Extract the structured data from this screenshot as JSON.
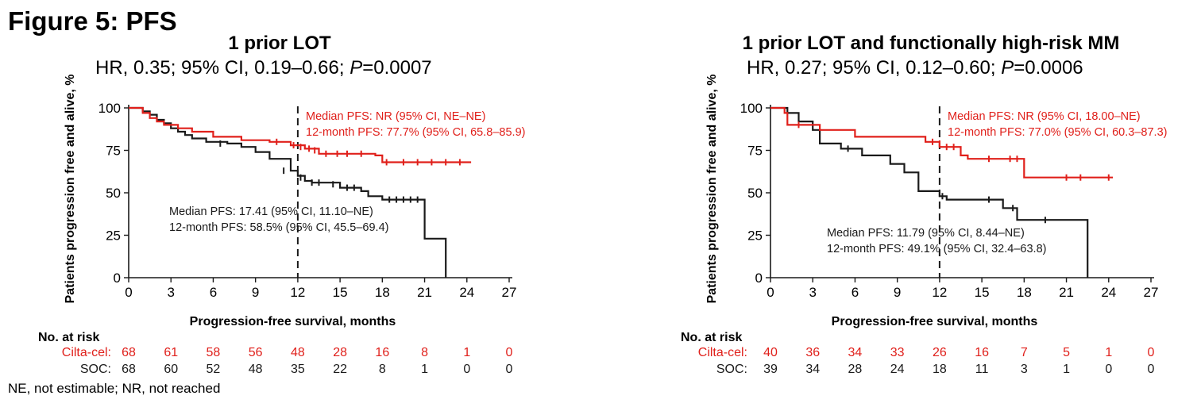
{
  "figure_title": "Figure 5: PFS",
  "footnote": "NE, not estimable; NR, not reached",
  "colors": {
    "cilta": "#e0201b",
    "soc": "#1a1a1a"
  },
  "chart_data": [
    {
      "type": "line",
      "title": "1 prior LOT",
      "subtitle": {
        "pre": "HR, 0.35; 95% CI, 0.19–0.66; ",
        "p_symbol": "P",
        "p_value": "=0.0007"
      },
      "xlabel": "Progression-free survival, months",
      "ylabel": "Patients progression free and alive, %",
      "xlim": [
        0,
        27
      ],
      "ylim": [
        0,
        100
      ],
      "xticks": [
        "0",
        "3",
        "6",
        "9",
        "12",
        "15",
        "18",
        "21",
        "24",
        "27"
      ],
      "yticks": [
        "0",
        "25",
        "50",
        "75",
        "100"
      ],
      "reference_line_x": 12,
      "series": [
        {
          "key": "cilta",
          "color": "#e0201b",
          "x": [
            0,
            1,
            1.5,
            2,
            2.5,
            3.5,
            4.5,
            6,
            8,
            10,
            11.5,
            12.5,
            13.5,
            17.5,
            18,
            24.3
          ],
          "y": [
            100,
            97,
            94,
            92,
            90,
            88,
            86,
            83,
            81,
            80,
            78,
            76,
            73,
            72,
            68,
            68
          ],
          "censors": [
            [
              10.5,
              80
            ],
            [
              11.7,
              78
            ],
            [
              12.2,
              77
            ],
            [
              12.8,
              76
            ],
            [
              13.2,
              75
            ],
            [
              14,
              73
            ],
            [
              14.8,
              73
            ],
            [
              15.5,
              73
            ],
            [
              16.5,
              73
            ],
            [
              18.3,
              68
            ],
            [
              19.5,
              68
            ],
            [
              20.5,
              68
            ],
            [
              21.5,
              68
            ],
            [
              22.5,
              68
            ],
            [
              23.5,
              68
            ]
          ],
          "annotation": [
            "Median PFS: NR (95% CI, NE–NE)",
            "12-month PFS: 77.7% (95% CI, 65.8–85.9)"
          ]
        },
        {
          "key": "soc",
          "color": "#1a1a1a",
          "x": [
            0,
            1,
            1.5,
            2,
            2.5,
            3,
            3.5,
            4,
            4.5,
            5.5,
            7,
            8,
            9,
            10,
            11.5,
            12,
            12.5,
            13,
            15,
            16.5,
            17,
            18,
            21,
            22.5
          ],
          "y": [
            100,
            98,
            96,
            93,
            91,
            88,
            86,
            84,
            82,
            80,
            79,
            77,
            74,
            70,
            63,
            60,
            57,
            56,
            53,
            51,
            48,
            46,
            23,
            0
          ],
          "censors": [
            [
              6.5,
              79
            ],
            [
              11,
              63
            ],
            [
              12.2,
              59
            ],
            [
              13,
              56
            ],
            [
              13.5,
              56
            ],
            [
              14.5,
              55
            ],
            [
              15.5,
              53
            ],
            [
              16,
              53
            ],
            [
              18.5,
              46
            ],
            [
              19,
              46
            ],
            [
              19.5,
              46
            ],
            [
              20,
              46
            ],
            [
              20.5,
              46
            ]
          ],
          "annotation": [
            "Median PFS: 17.41 (95% CI, 11.10–NE)",
            "12-month PFS: 58.5% (95% CI, 45.5–69.4)"
          ]
        }
      ],
      "risk_table": {
        "title": "No. at risk",
        "rows": [
          {
            "label": "Cilta-cel:",
            "color": "#e0201b",
            "values": [
              "68",
              "61",
              "58",
              "56",
              "48",
              "28",
              "16",
              "8",
              "1",
              "0"
            ]
          },
          {
            "label": "SOC:",
            "color": "#1a1a1a",
            "values": [
              "68",
              "60",
              "52",
              "48",
              "35",
              "22",
              "8",
              "1",
              "0",
              "0"
            ]
          }
        ]
      }
    },
    {
      "type": "line",
      "title": "1 prior LOT and functionally high-risk MM",
      "subtitle": {
        "pre": "HR, 0.27; 95% CI, 0.12–0.60; ",
        "p_symbol": "P",
        "p_value": "=0.0006"
      },
      "xlabel": "Progression-free survival, months",
      "ylabel": "Patients progression free and alive, %",
      "xlim": [
        0,
        27
      ],
      "ylim": [
        0,
        100
      ],
      "xticks": [
        "0",
        "3",
        "6",
        "9",
        "12",
        "15",
        "18",
        "21",
        "24",
        "27"
      ],
      "yticks": [
        "0",
        "25",
        "50",
        "75",
        "100"
      ],
      "reference_line_x": 12,
      "series": [
        {
          "key": "cilta",
          "color": "#e0201b",
          "x": [
            0,
            1,
            1.2,
            3.5,
            6,
            11,
            12,
            13.5,
            14,
            18,
            24.3
          ],
          "y": [
            100,
            97,
            90,
            87,
            83,
            80,
            77,
            72,
            70,
            59,
            59
          ],
          "censors": [
            [
              2,
              90
            ],
            [
              11.5,
              80
            ],
            [
              12,
              79
            ],
            [
              12.5,
              77
            ],
            [
              13,
              77
            ],
            [
              15.5,
              70
            ],
            [
              17,
              70
            ],
            [
              17.5,
              70
            ],
            [
              21,
              59
            ],
            [
              22,
              59
            ],
            [
              24,
              59
            ]
          ],
          "annotation": [
            "Median PFS: NR (95% CI, 18.00–NE)",
            "12-month PFS: 77.0% (95% CI, 60.3–87.3)"
          ]
        },
        {
          "key": "soc",
          "color": "#1a1a1a",
          "x": [
            0,
            1.2,
            2,
            3,
            3.5,
            5,
            6.5,
            8.5,
            9.5,
            10.5,
            12,
            12.5,
            16,
            16.5,
            17.5,
            22.5
          ],
          "y": [
            100,
            97,
            92,
            87,
            79,
            76,
            72,
            67,
            62,
            51,
            48,
            46,
            46,
            41,
            34,
            0
          ],
          "censors": [
            [
              5.5,
              76
            ],
            [
              12.2,
              48
            ],
            [
              15.5,
              46
            ],
            [
              17.2,
              41
            ],
            [
              19.5,
              34
            ]
          ],
          "annotation": [
            "Median PFS: 11.79 (95% CI, 8.44–NE)",
            "12-month PFS: 49.1% (95% CI, 32.4–63.8)"
          ]
        }
      ],
      "risk_table": {
        "title": "No. at risk",
        "rows": [
          {
            "label": "Cilta-cel:",
            "color": "#e0201b",
            "values": [
              "40",
              "36",
              "34",
              "33",
              "26",
              "16",
              "7",
              "5",
              "1",
              "0"
            ]
          },
          {
            "label": "SOC:",
            "color": "#1a1a1a",
            "values": [
              "39",
              "34",
              "28",
              "24",
              "18",
              "11",
              "3",
              "1",
              "0",
              "0"
            ]
          }
        ]
      }
    }
  ]
}
